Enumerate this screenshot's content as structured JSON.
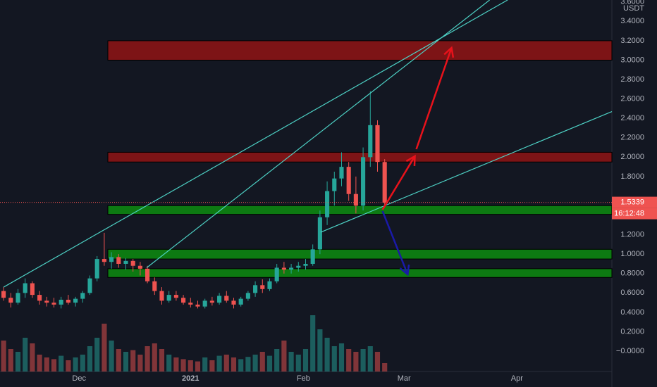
{
  "chart_data": {
    "type": "candlestick",
    "unit": "USDT",
    "candles": {
      "open": [
        0.62,
        0.55,
        0.5,
        0.6,
        0.7,
        0.58,
        0.52,
        0.5,
        0.48,
        0.53,
        0.5,
        0.54,
        0.6,
        0.75,
        0.95,
        0.92,
        0.97,
        0.9,
        0.93,
        0.88,
        0.85,
        0.72,
        0.62,
        0.52,
        0.58,
        0.55,
        0.5,
        0.48,
        0.46,
        0.52,
        0.5,
        0.57,
        0.52,
        0.48,
        0.54,
        0.6,
        0.68,
        0.64,
        0.72,
        0.86,
        0.84,
        0.86,
        0.88,
        0.9,
        1.05,
        1.38,
        1.65,
        1.78,
        1.9,
        1.62,
        1.5,
        2.0,
        2.33,
        1.95
      ],
      "high": [
        0.66,
        0.6,
        0.64,
        0.75,
        0.72,
        0.62,
        0.56,
        0.55,
        0.56,
        0.58,
        0.56,
        0.62,
        0.78,
        0.98,
        1.22,
        1.02,
        1.0,
        0.96,
        0.95,
        0.92,
        0.88,
        0.76,
        0.66,
        0.62,
        0.62,
        0.58,
        0.55,
        0.52,
        0.54,
        0.56,
        0.6,
        0.62,
        0.55,
        0.56,
        0.62,
        0.72,
        0.74,
        0.75,
        0.9,
        0.92,
        0.9,
        0.92,
        0.95,
        1.1,
        1.45,
        1.75,
        1.85,
        2.05,
        1.95,
        1.8,
        2.1,
        2.68,
        2.38,
        1.98
      ],
      "low": [
        0.52,
        0.45,
        0.48,
        0.55,
        0.55,
        0.48,
        0.46,
        0.45,
        0.44,
        0.48,
        0.46,
        0.5,
        0.58,
        0.72,
        0.88,
        0.85,
        0.86,
        0.84,
        0.82,
        0.78,
        0.7,
        0.58,
        0.48,
        0.5,
        0.52,
        0.48,
        0.45,
        0.44,
        0.44,
        0.47,
        0.48,
        0.5,
        0.44,
        0.46,
        0.52,
        0.56,
        0.6,
        0.62,
        0.7,
        0.8,
        0.8,
        0.82,
        0.84,
        0.88,
        1.0,
        1.3,
        1.5,
        1.7,
        1.55,
        1.42,
        1.45,
        1.9,
        1.85,
        1.5
      ],
      "close": [
        0.55,
        0.5,
        0.6,
        0.7,
        0.58,
        0.52,
        0.5,
        0.48,
        0.53,
        0.5,
        0.54,
        0.6,
        0.75,
        0.95,
        0.92,
        0.97,
        0.9,
        0.93,
        0.88,
        0.85,
        0.72,
        0.62,
        0.52,
        0.58,
        0.55,
        0.5,
        0.48,
        0.46,
        0.52,
        0.5,
        0.57,
        0.52,
        0.48,
        0.54,
        0.6,
        0.68,
        0.64,
        0.72,
        0.86,
        0.84,
        0.86,
        0.88,
        0.9,
        1.05,
        1.38,
        1.65,
        1.78,
        1.9,
        1.62,
        1.5,
        2.0,
        2.33,
        1.95,
        1.53
      ]
    },
    "volume": [
      55,
      40,
      35,
      60,
      50,
      30,
      25,
      22,
      28,
      20,
      25,
      30,
      45,
      60,
      85,
      55,
      40,
      35,
      38,
      30,
      45,
      50,
      40,
      30,
      25,
      22,
      20,
      18,
      25,
      20,
      28,
      30,
      25,
      22,
      26,
      30,
      35,
      28,
      40,
      55,
      35,
      30,
      40,
      100,
      75,
      60,
      45,
      50,
      40,
      35,
      40,
      45,
      35,
      15
    ],
    "colors": {
      "up": "#26a69a",
      "down": "#ef5350"
    },
    "xlim": [
      -0.5,
      84.6
    ],
    "xticks": [
      {
        "value": 10.5,
        "label": "Dec"
      },
      {
        "value": 26,
        "label": "2021"
      },
      {
        "value": 41.7,
        "label": "Feb"
      },
      {
        "value": 55.7,
        "label": "Mar"
      },
      {
        "value": 71.4,
        "label": "Apr"
      }
    ],
    "ylim": [
      -0.21,
      3.62
    ],
    "yticks": [
      {
        "value": 3.6,
        "label": "3.6000"
      },
      {
        "value": 3.4,
        "label": "3.4000"
      },
      {
        "value": 3.2,
        "label": "3.2000"
      },
      {
        "value": 3.0,
        "label": "3.0000"
      },
      {
        "value": 2.8,
        "label": "2.8000"
      },
      {
        "value": 2.6,
        "label": "2.6000"
      },
      {
        "value": 2.4,
        "label": "2.4000"
      },
      {
        "value": 2.2,
        "label": "2.2000"
      },
      {
        "value": 2.0,
        "label": "2.0000"
      },
      {
        "value": 1.8,
        "label": "1.8000"
      },
      {
        "value": 1.2,
        "label": "1.2000"
      },
      {
        "value": 1.0,
        "label": "1.0000"
      },
      {
        "value": 0.8,
        "label": "0.8000"
      },
      {
        "value": 0.6,
        "label": "0.6000"
      },
      {
        "value": 0.4,
        "label": "0.4000"
      },
      {
        "value": 0.2,
        "label": "0.2000"
      },
      {
        "value": 0,
        "label": "−0.0000"
      }
    ],
    "last_price": 1.5339,
    "countdown": "16:12:48",
    "zones": [
      {
        "start": 14.5,
        "low": 3.0,
        "high": 3.2,
        "color": "#7d1416"
      },
      {
        "start": 14.5,
        "low": 1.95,
        "high": 2.05,
        "color": "#7d1416"
      },
      {
        "start": 14.5,
        "low": 1.41,
        "high": 1.5,
        "color": "#0d7a12"
      },
      {
        "start": 14.5,
        "low": 0.95,
        "high": 1.05,
        "color": "#0d7a12"
      },
      {
        "start": 14.5,
        "low": 0.76,
        "high": 0.85,
        "color": "#0d7a12"
      }
    ],
    "trendlines": [
      {
        "x": [
          0,
          70.1
        ],
        "y": [
          0.66,
          3.62
        ],
        "color": "#4dd0c4"
      },
      {
        "x": [
          19.9,
          67.6
        ],
        "y": [
          0.86,
          3.62
        ],
        "color": "#4dd0c4"
      },
      {
        "x": [
          44.1,
          84.6
        ],
        "y": [
          1.226,
          2.47
        ],
        "color": "#4dd0c4"
      }
    ],
    "arrows": [
      {
        "x": [
          52.7,
          57.2
        ],
        "y": [
          1.458,
          2.01
        ],
        "color": "#e8121b"
      },
      {
        "x": [
          57.4,
          62.3
        ],
        "y": [
          2.082,
          3.127
        ],
        "color": "#e8121b"
      },
      {
        "x": [
          52.7,
          56.2
        ],
        "y": [
          1.444,
          0.791
        ],
        "color": "#1a1aa8"
      }
    ]
  }
}
